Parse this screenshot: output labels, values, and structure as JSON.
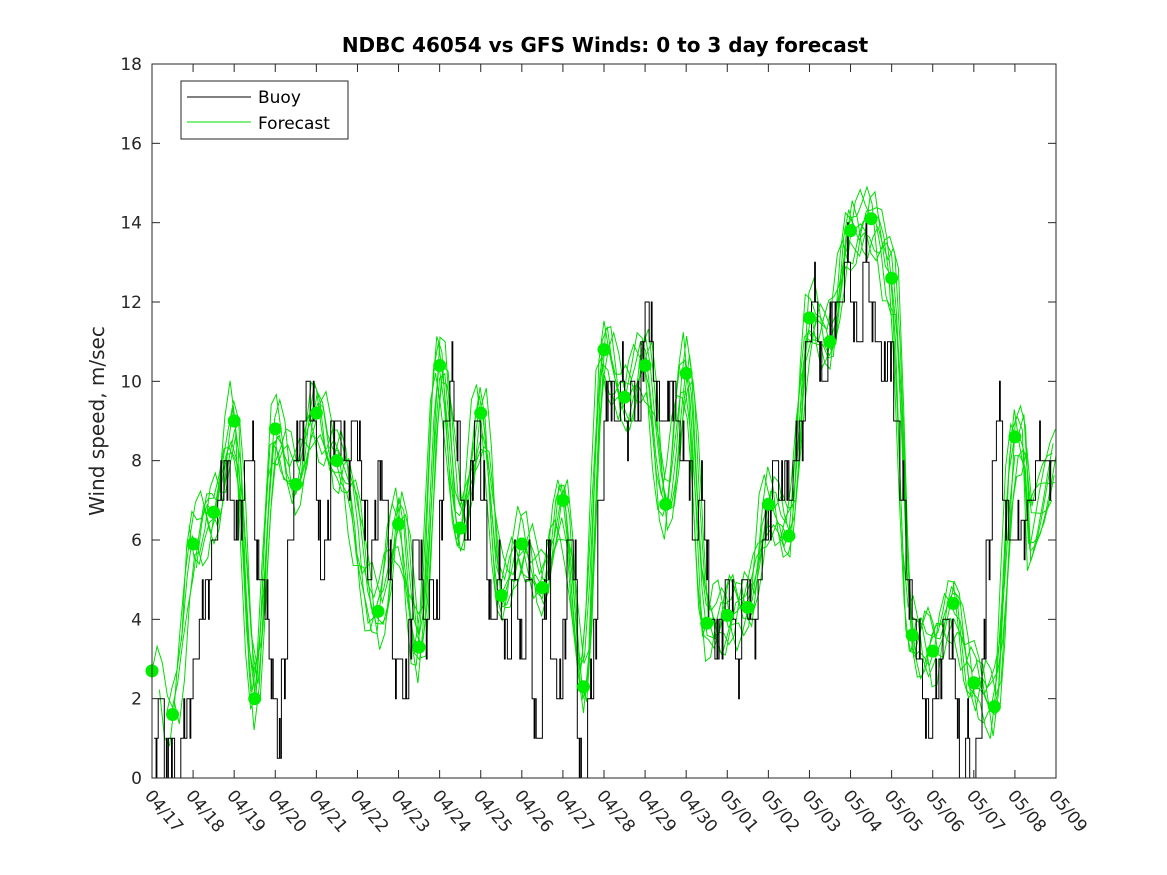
{
  "chart_data": {
    "type": "line",
    "title": "NDBC 46054 vs GFS Winds: 0 to 3 day forecast",
    "xlabel": "",
    "ylabel": "Wind speed, m/sec",
    "ylim": [
      0,
      18
    ],
    "y_ticks": [
      "0",
      "2",
      "4",
      "6",
      "8",
      "10",
      "12",
      "14",
      "16",
      "18"
    ],
    "x_tick_labels": [
      "04/17",
      "04/18",
      "04/19",
      "04/20",
      "04/21",
      "04/22",
      "04/23",
      "04/24",
      "04/25",
      "04/26",
      "04/27",
      "04/28",
      "04/29",
      "04/30",
      "05/01",
      "05/02",
      "05/03",
      "05/04",
      "05/05",
      "05/06",
      "05/07",
      "05/08",
      "05/09"
    ],
    "xlim_days": [
      0,
      22
    ],
    "grid": false,
    "legend": {
      "position": "top-left",
      "entries": [
        "Buoy",
        "Forecast"
      ]
    },
    "colors": {
      "buoy": "#000000",
      "forecast": "#00dd00",
      "points": "#00ee00"
    },
    "buoy_series": [
      [
        0.05,
        1
      ],
      [
        0.15,
        2
      ],
      [
        0.3,
        0
      ],
      [
        0.4,
        1
      ],
      [
        0.55,
        0
      ],
      [
        0.7,
        1
      ],
      [
        0.85,
        2
      ],
      [
        1.0,
        3
      ],
      [
        1.15,
        4
      ],
      [
        1.3,
        5
      ],
      [
        1.45,
        6
      ],
      [
        1.6,
        7
      ],
      [
        1.75,
        8
      ],
      [
        1.9,
        7
      ],
      [
        2.0,
        6
      ],
      [
        2.1,
        7
      ],
      [
        2.25,
        8
      ],
      [
        2.4,
        8
      ],
      [
        2.5,
        6
      ],
      [
        2.6,
        5
      ],
      [
        2.75,
        4
      ],
      [
        2.85,
        3
      ],
      [
        2.95,
        2
      ],
      [
        3.05,
        0.5
      ],
      [
        3.15,
        3
      ],
      [
        3.3,
        6
      ],
      [
        3.45,
        8
      ],
      [
        3.6,
        9
      ],
      [
        3.75,
        10
      ],
      [
        3.85,
        9
      ],
      [
        4.0,
        7
      ],
      [
        4.1,
        5
      ],
      [
        4.2,
        6
      ],
      [
        4.35,
        9
      ],
      [
        4.5,
        9
      ],
      [
        4.6,
        8
      ],
      [
        4.75,
        8
      ],
      [
        4.85,
        9
      ],
      [
        5.0,
        8
      ],
      [
        5.1,
        7
      ],
      [
        5.25,
        5
      ],
      [
        5.35,
        6
      ],
      [
        5.5,
        8
      ],
      [
        5.6,
        7
      ],
      [
        5.75,
        5
      ],
      [
        5.85,
        3
      ],
      [
        6.0,
        3
      ],
      [
        6.1,
        2
      ],
      [
        6.25,
        4
      ],
      [
        6.35,
        6
      ],
      [
        6.5,
        5
      ],
      [
        6.6,
        4
      ],
      [
        6.75,
        5
      ],
      [
        6.85,
        4
      ],
      [
        7.0,
        7
      ],
      [
        7.1,
        9
      ],
      [
        7.25,
        10
      ],
      [
        7.35,
        9
      ],
      [
        7.5,
        7
      ],
      [
        7.6,
        6
      ],
      [
        7.75,
        8
      ],
      [
        7.85,
        9
      ],
      [
        8.0,
        7
      ],
      [
        8.15,
        5
      ],
      [
        8.25,
        4
      ],
      [
        8.4,
        5
      ],
      [
        8.5,
        4
      ],
      [
        8.65,
        3
      ],
      [
        8.75,
        5
      ],
      [
        8.9,
        4
      ],
      [
        9.0,
        3
      ],
      [
        9.1,
        5
      ],
      [
        9.25,
        2
      ],
      [
        9.35,
        1
      ],
      [
        9.5,
        4
      ],
      [
        9.6,
        6
      ],
      [
        9.7,
        3
      ],
      [
        9.85,
        2
      ],
      [
        10.0,
        4
      ],
      [
        10.1,
        6
      ],
      [
        10.25,
        5
      ],
      [
        10.35,
        1
      ],
      [
        10.45,
        0
      ],
      [
        10.6,
        2
      ],
      [
        10.75,
        4
      ],
      [
        10.85,
        7
      ],
      [
        11.0,
        9
      ],
      [
        11.1,
        10
      ],
      [
        11.25,
        9
      ],
      [
        11.4,
        10
      ],
      [
        11.5,
        9
      ],
      [
        11.65,
        10
      ],
      [
        11.75,
        9
      ],
      [
        11.9,
        11
      ],
      [
        12.0,
        12
      ],
      [
        12.1,
        11
      ],
      [
        12.2,
        10
      ],
      [
        12.35,
        9
      ],
      [
        12.5,
        9
      ],
      [
        12.6,
        10
      ],
      [
        12.75,
        9
      ],
      [
        12.85,
        8
      ],
      [
        13.0,
        8
      ],
      [
        13.15,
        6
      ],
      [
        13.3,
        7
      ],
      [
        13.45,
        6
      ],
      [
        13.55,
        4
      ],
      [
        13.7,
        3
      ],
      [
        13.8,
        4
      ],
      [
        13.95,
        5
      ],
      [
        14.05,
        4
      ],
      [
        14.2,
        3
      ],
      [
        14.35,
        5
      ],
      [
        14.5,
        4
      ],
      [
        14.6,
        4
      ],
      [
        14.75,
        5
      ],
      [
        14.85,
        6
      ],
      [
        15.0,
        7
      ],
      [
        15.1,
        8
      ],
      [
        15.25,
        7
      ],
      [
        15.4,
        8
      ],
      [
        15.5,
        7
      ],
      [
        15.6,
        8
      ],
      [
        15.75,
        9
      ],
      [
        15.9,
        11
      ],
      [
        16.05,
        12
      ],
      [
        16.2,
        11
      ],
      [
        16.3,
        10
      ],
      [
        16.45,
        11
      ],
      [
        16.55,
        12
      ],
      [
        16.7,
        12
      ],
      [
        16.85,
        13
      ],
      [
        17.0,
        12
      ],
      [
        17.15,
        11
      ],
      [
        17.3,
        13
      ],
      [
        17.45,
        12
      ],
      [
        17.6,
        11
      ],
      [
        17.75,
        10
      ],
      [
        17.9,
        11
      ],
      [
        18.05,
        9
      ],
      [
        18.2,
        7
      ],
      [
        18.35,
        5
      ],
      [
        18.5,
        4
      ],
      [
        18.6,
        3
      ],
      [
        18.75,
        2
      ],
      [
        18.9,
        1
      ],
      [
        19.0,
        2
      ],
      [
        19.15,
        3
      ],
      [
        19.25,
        4
      ],
      [
        19.4,
        3
      ],
      [
        19.55,
        2
      ],
      [
        19.65,
        0
      ],
      [
        19.8,
        1
      ],
      [
        19.9,
        0
      ],
      [
        20.05,
        1
      ],
      [
        20.2,
        3
      ],
      [
        20.3,
        6
      ],
      [
        20.45,
        8
      ],
      [
        20.55,
        9
      ],
      [
        20.7,
        7
      ],
      [
        20.85,
        6
      ],
      [
        21.0,
        6
      ],
      [
        21.15,
        6.5
      ],
      [
        21.3,
        7
      ],
      [
        21.5,
        8
      ],
      [
        21.7,
        8
      ],
      [
        22.0,
        8.5
      ]
    ],
    "forecast_points": [
      [
        0.0,
        2.7
      ],
      [
        0.5,
        1.6
      ],
      [
        1.0,
        5.9
      ],
      [
        1.5,
        6.7
      ],
      [
        2.0,
        9.0
      ],
      [
        2.5,
        2.0
      ],
      [
        3.0,
        8.8
      ],
      [
        3.5,
        7.4
      ],
      [
        4.0,
        9.2
      ],
      [
        4.5,
        8.0
      ],
      [
        5.5,
        4.2
      ],
      [
        6.0,
        6.4
      ],
      [
        6.5,
        3.3
      ],
      [
        7.0,
        10.4
      ],
      [
        7.5,
        6.3
      ],
      [
        8.0,
        9.2
      ],
      [
        8.5,
        4.6
      ],
      [
        9.0,
        5.9
      ],
      [
        9.5,
        4.8
      ],
      [
        10.0,
        7.0
      ],
      [
        10.5,
        2.3
      ],
      [
        11.0,
        10.8
      ],
      [
        11.5,
        9.6
      ],
      [
        12.0,
        10.4
      ],
      [
        12.5,
        6.9
      ],
      [
        13.0,
        10.2
      ],
      [
        13.5,
        3.9
      ],
      [
        14.0,
        4.1
      ],
      [
        14.5,
        4.3
      ],
      [
        15.0,
        6.9
      ],
      [
        15.5,
        6.1
      ],
      [
        16.0,
        11.6
      ],
      [
        16.5,
        11.0
      ],
      [
        17.0,
        13.8
      ],
      [
        17.5,
        14.1
      ],
      [
        18.0,
        12.6
      ],
      [
        18.5,
        3.6
      ],
      [
        19.0,
        3.2
      ],
      [
        19.5,
        4.4
      ],
      [
        20.0,
        2.4
      ],
      [
        20.5,
        1.8
      ],
      [
        21.0,
        8.6
      ]
    ],
    "forecast_runs": 8
  }
}
